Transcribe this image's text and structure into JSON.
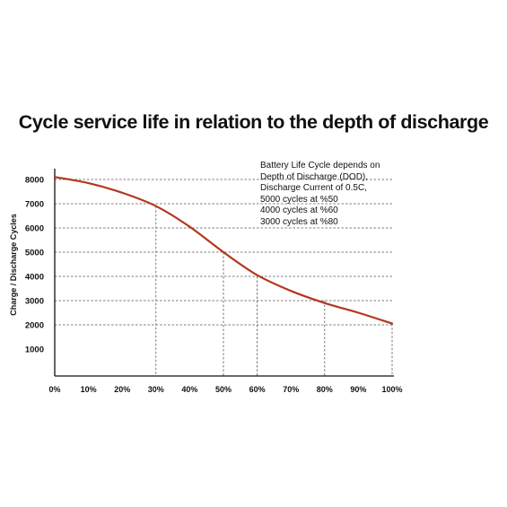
{
  "chart_data": {
    "type": "line",
    "title": "Cycle service life in relation to the depth of discharge",
    "ylabel": "Charge / Discharge Cycles",
    "xlabel": "",
    "x_ticks": [
      "0%",
      "10%",
      "20%",
      "30%",
      "40%",
      "50%",
      "60%",
      "70%",
      "80%",
      "90%",
      "100%"
    ],
    "y_ticks": [
      "1000",
      "2000",
      "3000",
      "4000",
      "5000",
      "6000",
      "7000",
      "8000"
    ],
    "xlim": [
      0,
      100
    ],
    "ylim": [
      0,
      8500
    ],
    "series": [
      {
        "color": "#b5361e",
        "x": [
          0,
          10,
          20,
          30,
          40,
          50,
          60,
          70,
          80,
          90,
          100
        ],
        "y": [
          8100,
          7850,
          7450,
          6900,
          6050,
          5000,
          4050,
          3400,
          2900,
          2500,
          2050
        ]
      }
    ],
    "guides": [
      {
        "x": 30,
        "y": 6900
      },
      {
        "x": 50,
        "y": 5000
      },
      {
        "x": 60,
        "y": 4000
      },
      {
        "x": 80,
        "y": 3000
      },
      {
        "x": 100,
        "y": 2050
      }
    ],
    "annotation": [
      "Battery Life Cycle depends on",
      "Depth of Discharge (DOD),",
      "Discharge Current of 0.5C,",
      "5000 cycles at %50",
      "4000 cycles at %60",
      "3000 cycles at %80"
    ]
  }
}
